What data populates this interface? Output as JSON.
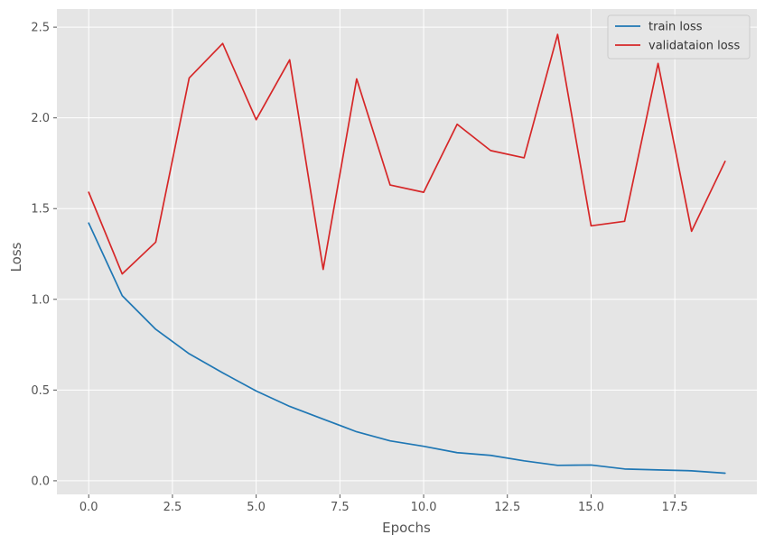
{
  "chart_data": {
    "type": "line",
    "title": "",
    "xlabel": "Epochs",
    "ylabel": "Loss",
    "x": [
      0,
      1,
      2,
      3,
      4,
      5,
      6,
      7,
      8,
      9,
      10,
      11,
      12,
      13,
      14,
      15,
      16,
      17,
      18,
      19
    ],
    "xlim": [
      -0.95,
      19.95
    ],
    "ylim": [
      -0.075,
      2.6
    ],
    "xticks": [
      0.0,
      2.5,
      5.0,
      7.5,
      10.0,
      12.5,
      15.0,
      17.5
    ],
    "xtick_labels": [
      "0.0",
      "2.5",
      "5.0",
      "7.5",
      "10.0",
      "12.5",
      "15.0",
      "17.5"
    ],
    "yticks": [
      0.0,
      0.5,
      1.0,
      1.5,
      2.0,
      2.5
    ],
    "ytick_labels": [
      "0.0",
      "0.5",
      "1.0",
      "1.5",
      "2.0",
      "2.5"
    ],
    "grid": true,
    "legend_position": "top-right",
    "series": [
      {
        "name": "train loss",
        "color": "#1f77b4",
        "values": [
          1.42,
          1.02,
          0.835,
          0.7,
          0.595,
          0.495,
          0.41,
          0.34,
          0.27,
          0.22,
          0.19,
          0.155,
          0.14,
          0.11,
          0.085,
          0.087,
          0.065,
          0.06,
          0.055,
          0.042
        ]
      },
      {
        "name": "validataion loss",
        "color": "#d62728",
        "values": [
          1.59,
          1.14,
          1.315,
          2.22,
          2.41,
          1.99,
          2.32,
          1.165,
          2.215,
          1.63,
          1.59,
          1.965,
          1.82,
          1.78,
          2.46,
          1.405,
          1.43,
          2.3,
          1.375,
          1.76
        ]
      }
    ]
  }
}
